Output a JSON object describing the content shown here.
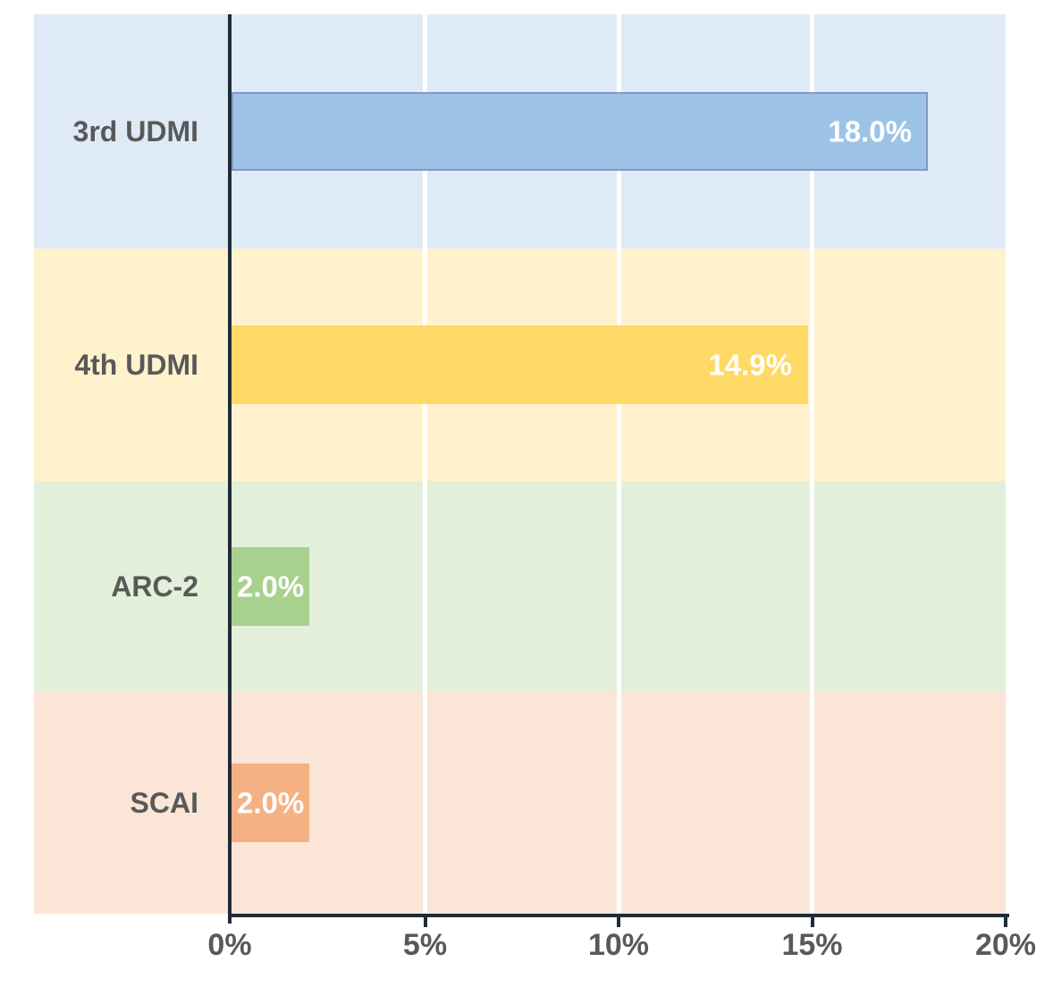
{
  "chart_data": {
    "type": "bar",
    "orientation": "horizontal",
    "title": "",
    "xlabel": "",
    "ylabel": "",
    "xlim": [
      0,
      20
    ],
    "grid": true,
    "categories": [
      "3rd UDMI",
      "4th UDMI",
      "ARC-2",
      "SCAI"
    ],
    "values": [
      18.0,
      14.9,
      2.0,
      2.0
    ],
    "rows": [
      {
        "label": "3rd UDMI",
        "value": 18.0,
        "data_label": "18.0%",
        "bar_color": "#9DC3E6",
        "bar_border": "#8496C8",
        "band_color": "#DEEBF7"
      },
      {
        "label": "4th UDMI",
        "value": 14.9,
        "data_label": "14.9%",
        "bar_color": "#FFD966",
        "bar_border": "#FFD966",
        "band_color": "#FFF2CC"
      },
      {
        "label": "ARC-2",
        "value": 2.0,
        "data_label": "2.0%",
        "bar_color": "#A9D18E",
        "bar_border": "#A9D18E",
        "band_color": "#E2EFDA"
      },
      {
        "label": "SCAI",
        "value": 2.0,
        "data_label": "2.0%",
        "bar_color": "#F4B183",
        "bar_border": "#F4B183",
        "band_color": "#FBE5D6"
      }
    ],
    "x_ticks": [
      {
        "label": "0%",
        "value": 0
      },
      {
        "label": "5%",
        "value": 5
      },
      {
        "label": "10%",
        "value": 10
      },
      {
        "label": "15%",
        "value": 15
      },
      {
        "label": "20%",
        "value": 20
      }
    ],
    "colors": {
      "axis": "#212B38",
      "gridline": "#FFFFFF",
      "category_text": "#595959",
      "tick_text": "#595959",
      "data_label_text": "#FFFFFF",
      "background": "#FFFFFF"
    }
  }
}
